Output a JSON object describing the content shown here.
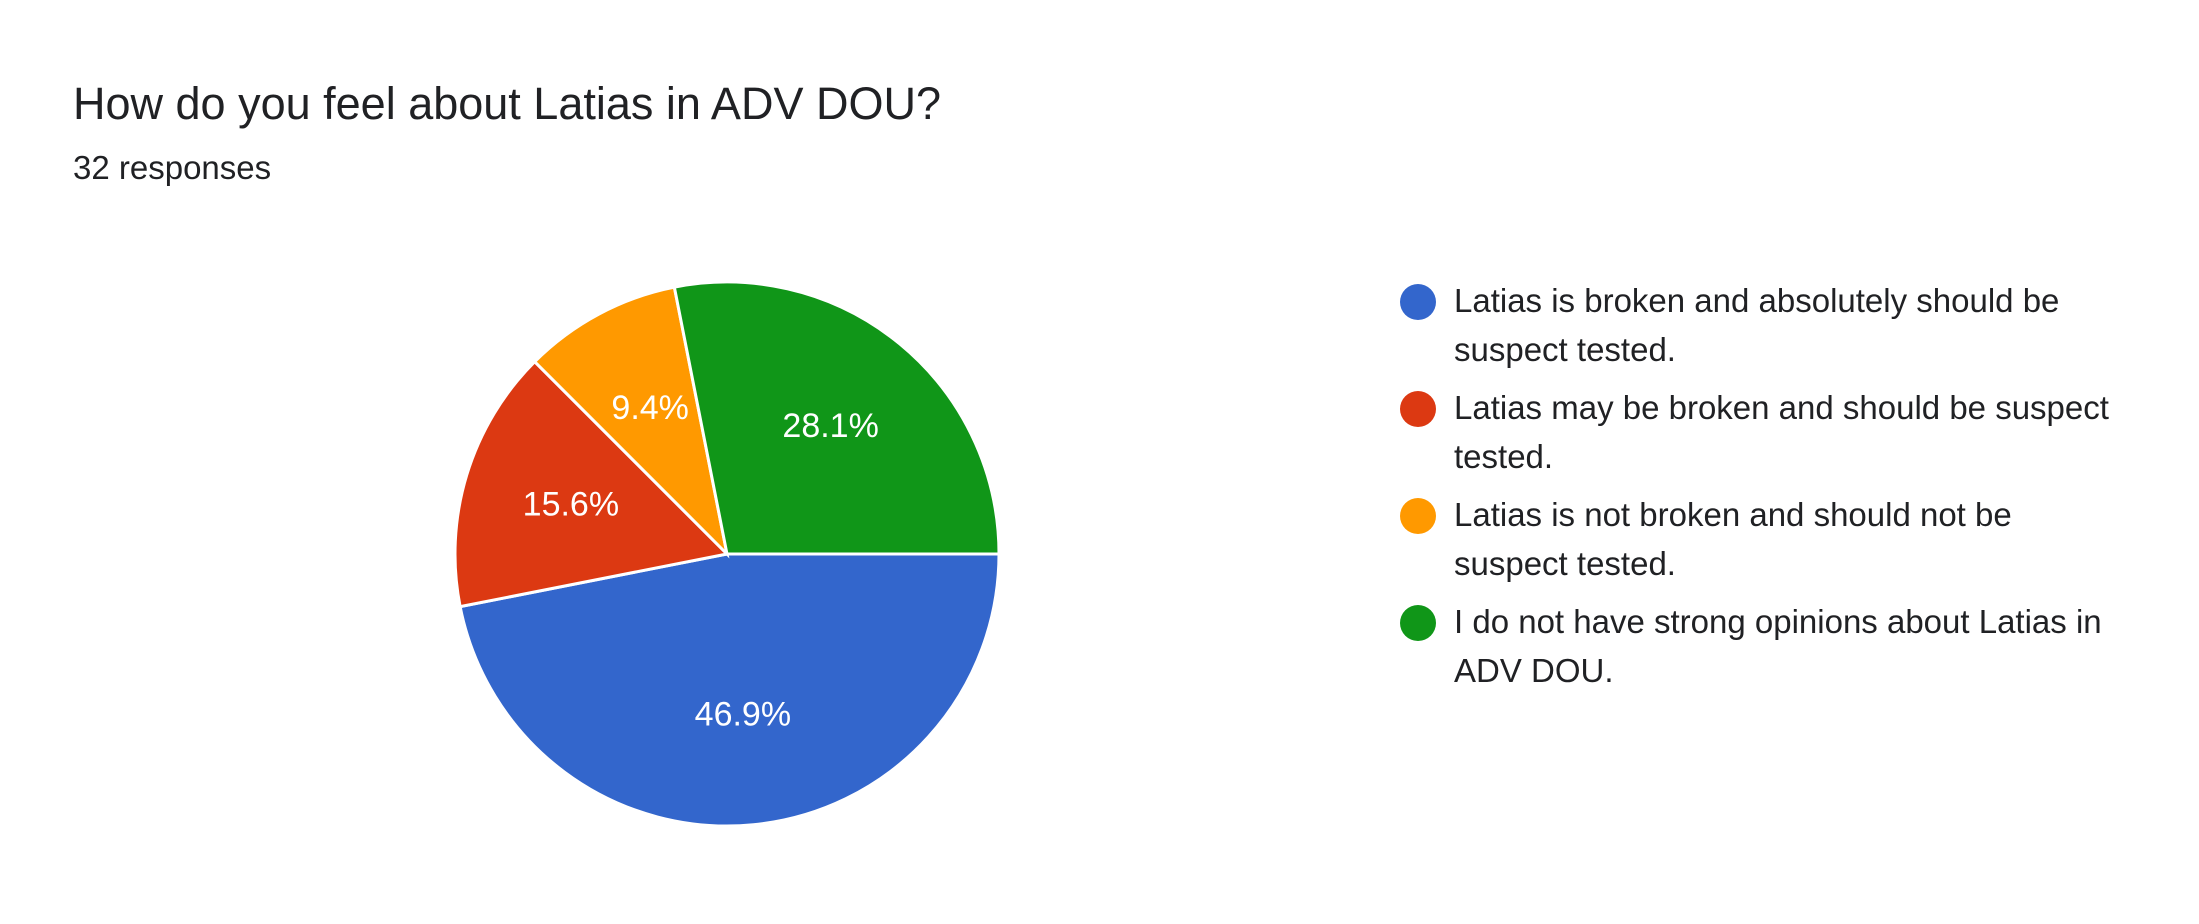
{
  "header": {
    "title": "How do you feel about Latias in ADV DOU?",
    "subtitle": "32 responses"
  },
  "chart_data": {
    "type": "pie",
    "total_responses": 32,
    "slices": [
      {
        "label": "Latias is broken and absolutely should be suspect tested.",
        "value": 46.9,
        "display": "46.9%",
        "color": "#3366cc"
      },
      {
        "label": "Latias may be broken and should be suspect tested.",
        "value": 15.6,
        "display": "15.6%",
        "color": "#dc3912"
      },
      {
        "label": "Latias is not broken and should not be suspect tested.",
        "value": 9.4,
        "display": "9.4%",
        "color": "#ff9900"
      },
      {
        "label": "I do not have strong opinions about Latias in ADV DOU.",
        "value": 28.1,
        "display": "28.1%",
        "color": "#109618"
      }
    ],
    "legend_position": "right"
  }
}
